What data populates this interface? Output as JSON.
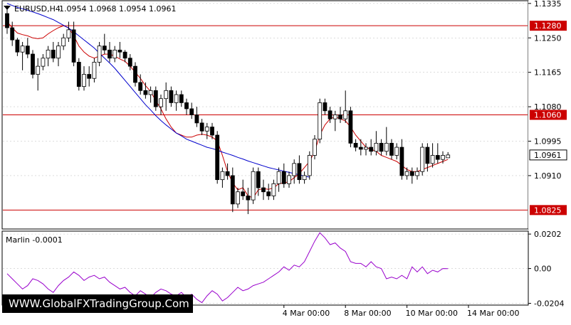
{
  "header": {
    "symbol_label": "EURUSD,H4",
    "ohlc_label": "1.0954 1.0968 1.0954 1.0961"
  },
  "watermark": {
    "text": "WWW.GlobalFXTradingGroup.Com"
  },
  "colors": {
    "background": "#ffffff",
    "grid": "#c8c8c8",
    "text": "#000000",
    "bull_candle_body": "#ffffff",
    "bear_candle_body": "#000000",
    "ma_fast": "#cc0000",
    "ma_slow": "#0000cc",
    "level_line": "#cc0000",
    "level_label_bg": "#cc0000",
    "level_label_text": "#ffffff",
    "current_price_bg": "#ffffff",
    "oscillator": "#9900cc"
  },
  "chart_data": [
    {
      "type": "candlestick",
      "title": "EURUSD,H4",
      "price_ticks": [
        "1.1335",
        "1.1250",
        "1.1165",
        "1.1080",
        "1.0995",
        "1.0910"
      ],
      "price_tick_values": [
        1.1335,
        1.125,
        1.1165,
        1.108,
        1.0995,
        1.091
      ],
      "ylim": [
        1.078,
        1.134
      ],
      "horizontal_levels": [
        {
          "label": "1.1280",
          "value": 1.128
        },
        {
          "label": "1.1060",
          "value": 1.106
        },
        {
          "label": "1.0825",
          "value": 1.0825
        }
      ],
      "current_price": {
        "label": "1.0961",
        "value": 1.0961
      },
      "x_ticks": [
        {
          "label": "4 Mar 00:00",
          "index": 54
        },
        {
          "label": "8 Mar 00:00",
          "index": 66
        },
        {
          "label": "10 Mar 00:00",
          "index": 78
        },
        {
          "label": "14 Mar 00:00",
          "index": 90
        }
      ],
      "candles": [
        [
          1.131,
          1.133,
          1.126,
          1.1275
        ],
        [
          1.1275,
          1.129,
          1.123,
          1.1245
        ],
        [
          1.1245,
          1.125,
          1.1205,
          1.1215
        ],
        [
          1.1215,
          1.124,
          1.117,
          1.123
        ],
        [
          1.123,
          1.125,
          1.12,
          1.121
        ],
        [
          1.121,
          1.122,
          1.115,
          1.116
        ],
        [
          1.116,
          1.12,
          1.112,
          1.118
        ],
        [
          1.118,
          1.121,
          1.117,
          1.12
        ],
        [
          1.12,
          1.123,
          1.118,
          1.122
        ],
        [
          1.122,
          1.124,
          1.119,
          1.12
        ],
        [
          1.12,
          1.124,
          1.118,
          1.123
        ],
        [
          1.123,
          1.126,
          1.122,
          1.125
        ],
        [
          1.125,
          1.129,
          1.124,
          1.127
        ],
        [
          1.127,
          1.129,
          1.118,
          1.119
        ],
        [
          1.119,
          1.12,
          1.112,
          1.113
        ],
        [
          1.113,
          1.118,
          1.112,
          1.116
        ],
        [
          1.116,
          1.118,
          1.113,
          1.115
        ],
        [
          1.115,
          1.12,
          1.114,
          1.119
        ],
        [
          1.119,
          1.124,
          1.118,
          1.123
        ],
        [
          1.123,
          1.126,
          1.121,
          1.122
        ],
        [
          1.122,
          1.124,
          1.119,
          1.12
        ],
        [
          1.12,
          1.123,
          1.119,
          1.122
        ],
        [
          1.122,
          1.124,
          1.12,
          1.1215
        ],
        [
          1.1215,
          1.122,
          1.119,
          1.12
        ],
        [
          1.12,
          1.121,
          1.117,
          1.118
        ],
        [
          1.118,
          1.119,
          1.113,
          1.114
        ],
        [
          1.114,
          1.116,
          1.111,
          1.112
        ],
        [
          1.112,
          1.114,
          1.11,
          1.111
        ],
        [
          1.111,
          1.113,
          1.109,
          1.112
        ],
        [
          1.112,
          1.113,
          1.107,
          1.108
        ],
        [
          1.108,
          1.111,
          1.106,
          1.11
        ],
        [
          1.11,
          1.114,
          1.107,
          1.112
        ],
        [
          1.112,
          1.113,
          1.108,
          1.109
        ],
        [
          1.109,
          1.112,
          1.107,
          1.111
        ],
        [
          1.111,
          1.112,
          1.108,
          1.109
        ],
        [
          1.109,
          1.11,
          1.106,
          1.1075
        ],
        [
          1.1075,
          1.109,
          1.105,
          1.106
        ],
        [
          1.106,
          1.108,
          1.103,
          1.104
        ],
        [
          1.104,
          1.105,
          1.101,
          1.102
        ],
        [
          1.102,
          1.104,
          1.1,
          1.103
        ],
        [
          1.103,
          1.104,
          1.1,
          1.101
        ],
        [
          1.101,
          1.102,
          1.089,
          1.09
        ],
        [
          1.09,
          1.093,
          1.088,
          1.092
        ],
        [
          1.092,
          1.094,
          1.09,
          1.091
        ],
        [
          1.091,
          1.093,
          1.082,
          1.084
        ],
        [
          1.084,
          1.088,
          1.083,
          1.087
        ],
        [
          1.087,
          1.09,
          1.085,
          1.086
        ],
        [
          1.086,
          1.088,
          1.0815,
          1.085
        ],
        [
          1.085,
          1.093,
          1.084,
          1.092
        ],
        [
          1.092,
          1.093,
          1.086,
          1.088
        ],
        [
          1.088,
          1.09,
          1.085,
          1.087
        ],
        [
          1.087,
          1.089,
          1.085,
          1.086
        ],
        [
          1.086,
          1.09,
          1.085,
          1.089
        ],
        [
          1.089,
          1.093,
          1.087,
          1.092
        ],
        [
          1.092,
          1.094,
          1.088,
          1.089
        ],
        [
          1.089,
          1.092,
          1.088,
          1.091
        ],
        [
          1.091,
          1.095,
          1.089,
          1.094
        ],
        [
          1.094,
          1.096,
          1.089,
          1.09
        ],
        [
          1.09,
          1.092,
          1.089,
          1.091
        ],
        [
          1.091,
          1.097,
          1.09,
          1.096
        ],
        [
          1.096,
          1.101,
          1.095,
          1.1
        ],
        [
          1.1,
          1.11,
          1.099,
          1.109
        ],
        [
          1.109,
          1.11,
          1.106,
          1.107
        ],
        [
          1.107,
          1.108,
          1.104,
          1.105
        ],
        [
          1.105,
          1.107,
          1.102,
          1.106
        ],
        [
          1.106,
          1.108,
          1.104,
          1.105
        ],
        [
          1.105,
          1.112,
          1.104,
          1.107
        ],
        [
          1.107,
          1.108,
          1.098,
          1.099
        ],
        [
          1.099,
          1.1,
          1.097,
          1.098
        ],
        [
          1.098,
          1.1,
          1.096,
          1.0975
        ],
        [
          1.0975,
          1.099,
          1.096,
          1.098
        ],
        [
          1.098,
          1.1,
          1.096,
          1.097
        ],
        [
          1.097,
          1.102,
          1.096,
          1.099
        ],
        [
          1.099,
          1.1,
          1.096,
          1.097
        ],
        [
          1.097,
          1.103,
          1.096,
          1.099
        ],
        [
          1.099,
          1.1,
          1.095,
          1.096
        ],
        [
          1.096,
          1.099,
          1.095,
          1.098
        ],
        [
          1.098,
          1.1,
          1.09,
          1.091
        ],
        [
          1.091,
          1.093,
          1.09,
          1.092
        ],
        [
          1.092,
          1.093,
          1.089,
          1.091
        ],
        [
          1.091,
          1.093,
          1.09,
          1.092
        ],
        [
          1.092,
          1.099,
          1.091,
          1.098
        ],
        [
          1.098,
          1.099,
          1.092,
          1.094
        ],
        [
          1.094,
          1.099,
          1.093,
          1.096
        ],
        [
          1.096,
          1.099,
          1.094,
          1.095
        ],
        [
          1.095,
          1.097,
          1.094,
          1.096
        ],
        [
          1.0954,
          1.0968,
          1.0954,
          1.0961
        ]
      ],
      "series": [
        {
          "type": "line",
          "color": "#cc0000",
          "values": [
            1.129,
            1.1275,
            1.1262,
            1.1258,
            1.1255,
            1.125,
            1.1248,
            1.125,
            1.126,
            1.1268,
            1.1275,
            1.128,
            1.1275,
            1.1255,
            1.123,
            1.1215,
            1.1205,
            1.12,
            1.1205,
            1.121,
            1.121,
            1.1205,
            1.1198,
            1.1192,
            1.118,
            1.1165,
            1.115,
            1.1132,
            1.1118,
            1.1095,
            1.1075,
            1.105,
            1.103,
            1.1015,
            1.101,
            1.1005,
            1.1005,
            1.101,
            1.1012,
            1.101,
            1.1005,
            1.0996,
            1.096,
            1.092,
            1.0892,
            1.0875,
            1.088,
            1.086,
            1.0855,
            1.0875,
            1.0878,
            1.0876,
            1.088,
            1.089,
            1.0892,
            1.0895,
            1.0905,
            1.0915,
            1.093,
            1.0945,
            1.097,
            1.101,
            1.1035,
            1.105,
            1.1055,
            1.105,
            1.1045,
            1.103,
            1.101,
            1.0995,
            1.098,
            1.0975,
            1.097,
            1.096,
            1.0955,
            1.095,
            1.0945,
            1.0935,
            1.0925,
            1.092,
            1.092,
            1.0925,
            1.093,
            1.0935,
            1.094,
            1.0945,
            1.095
          ]
        },
        {
          "type": "line",
          "color": "#0000cc",
          "values": [
            1.1335,
            1.133,
            1.1325,
            1.1322,
            1.1318,
            1.1314,
            1.131,
            1.1305,
            1.13,
            1.1295,
            1.1288,
            1.1281,
            1.1274,
            1.1265,
            1.1255,
            1.1245,
            1.1235,
            1.1225,
            1.1212,
            1.12,
            1.1188,
            1.1175,
            1.116,
            1.1145,
            1.113,
            1.1115,
            1.11,
            1.1085,
            1.1072,
            1.1058,
            1.1046,
            1.1035,
            1.1025,
            1.1015,
            1.1008,
            1.1,
            1.0995,
            1.099,
            1.0985,
            1.098,
            1.0977,
            1.0973,
            1.0968,
            1.0964,
            1.096,
            1.0955,
            1.0951,
            1.0946,
            1.0942,
            1.0938,
            1.0934,
            1.093,
            1.0927,
            1.0924,
            1.0921,
            1.0918,
            1.0915,
            1.0912,
            1.0909,
            1.0906
          ]
        }
      ]
    },
    {
      "type": "line",
      "title": "Marlin -0.0001",
      "indicator_label": "Marlin -0.0001",
      "y_ticks": [
        "0.0202",
        "0.00",
        "-0.0204"
      ],
      "y_tick_values": [
        0.0202,
        0.0,
        -0.0204
      ],
      "ylim": [
        -0.021,
        0.0215
      ],
      "x_start_index": 0,
      "values": [
        -0.003,
        -0.006,
        -0.009,
        -0.012,
        -0.01,
        -0.006,
        -0.007,
        -0.009,
        -0.012,
        -0.014,
        -0.01,
        -0.007,
        -0.005,
        -0.002,
        -0.004,
        -0.007,
        -0.005,
        -0.004,
        -0.006,
        -0.005,
        -0.008,
        -0.01,
        -0.012,
        -0.011,
        -0.014,
        -0.016,
        -0.013,
        -0.015,
        -0.017,
        -0.014,
        -0.012,
        -0.013,
        -0.015,
        -0.016,
        -0.014,
        -0.017,
        -0.015,
        -0.018,
        -0.02,
        -0.016,
        -0.013,
        -0.015,
        -0.019,
        -0.017,
        -0.014,
        -0.011,
        -0.013,
        -0.012,
        -0.01,
        -0.009,
        -0.008,
        -0.006,
        -0.004,
        -0.002,
        0.001,
        -0.001,
        0.002,
        0.001,
        0.004,
        0.01,
        0.016,
        0.021,
        0.018,
        0.014,
        0.015,
        0.012,
        0.01,
        0.004,
        0.003,
        0.003,
        0.001,
        0.004,
        0.001,
        0.0,
        -0.006,
        -0.005,
        -0.006,
        -0.004,
        -0.006,
        0.001,
        -0.002,
        0.001,
        -0.003,
        -0.001,
        -0.002,
        0.0,
        -0.0001
      ]
    }
  ]
}
